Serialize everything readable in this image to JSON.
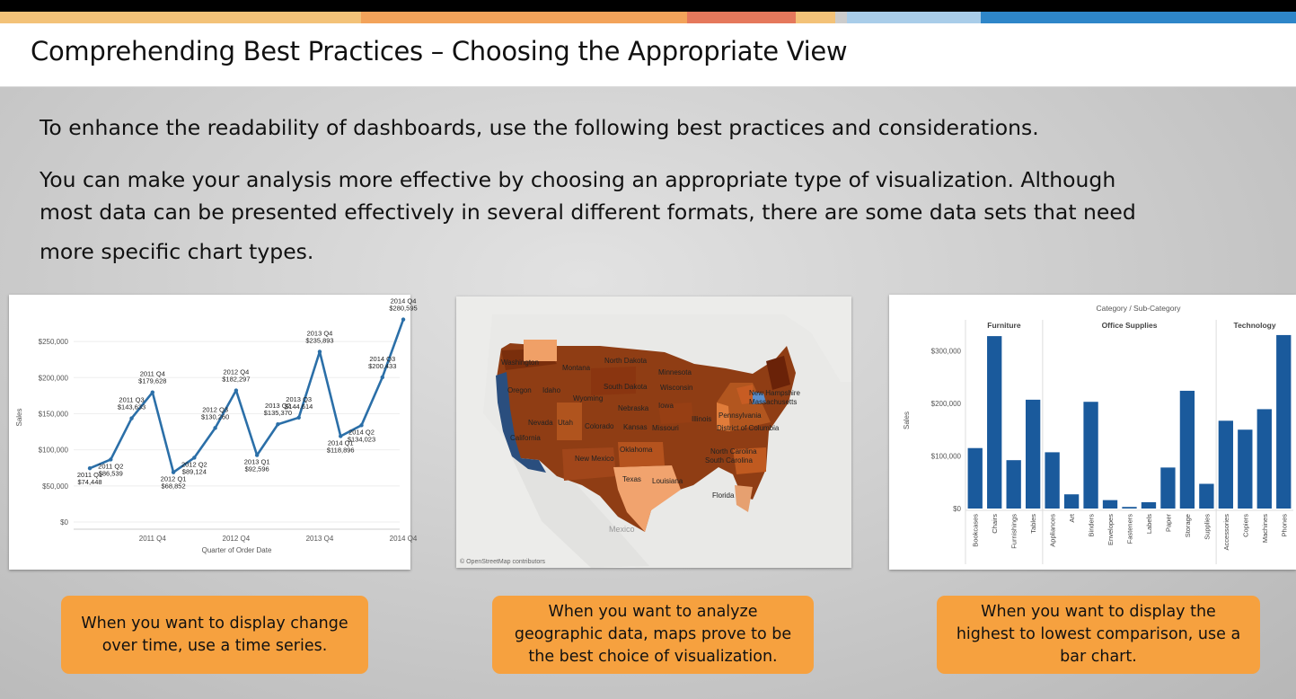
{
  "header": {
    "title": "Comprehending Best Practices – Choosing the Appropriate View",
    "accent_stripes": [
      "#f3c278",
      "#f3a35a",
      "#f0a05a",
      "#e5785c",
      "#f3c278",
      "#a9cde9",
      "#2e86c9"
    ]
  },
  "body": {
    "intro": "To enhance the readability of dashboards, use the following best practices and considerations.",
    "detail_lines": [
      "You can make your analysis more effective by choosing an appropriate type of visualization. Although",
      "most data can be presented effectively in several different formats, there are some data sets that need",
      "more specific chart types."
    ]
  },
  "captions": [
    {
      "line1": "When you want to display change",
      "line2": "over time, use a time series."
    },
    {
      "line1": "When you want to analyze",
      "line2": "geographic data, maps prove to be",
      "line3": "the best choice of visualization."
    },
    {
      "line1": "When you want to display the",
      "line2": "highest to lowest comparison, use a",
      "line3": "bar chart."
    }
  ],
  "map": {
    "attribution": "© OpenStreetMap contributors",
    "country_label": "Mexico",
    "state_labels": [
      "Washington",
      "Montana",
      "North Dakota",
      "Minnesota",
      "Oregon",
      "Idaho",
      "South Dakota",
      "Wisconsin",
      "Wyoming",
      "Nebraska",
      "Iowa",
      "New Hampshire",
      "Massachusetts",
      "Nevada",
      "Utah",
      "Colorado",
      "Kansas",
      "Missouri",
      "Illinois",
      "Pennsylvania",
      "District of Columbia",
      "California",
      "Oklahoma",
      "North Carolina",
      "South Carolina",
      "New Mexico",
      "Texas",
      "Louisiana",
      "Florida"
    ]
  },
  "chart_data": [
    {
      "type": "line",
      "xlabel": "Quarter of Order Date",
      "ylabel": "Sales",
      "y_ticks": [
        "$0",
        "$50,000",
        "$100,000",
        "$150,000",
        "$200,000",
        "$250,000"
      ],
      "x_ticks": [
        "2011 Q4",
        "2012 Q4",
        "2013 Q4",
        "2014 Q4"
      ],
      "ylim": [
        0,
        290000
      ],
      "series": [
        {
          "values": [
            74448,
            86539,
            143633,
            179628,
            68852,
            89124,
            130260,
            182297,
            92596,
            135370,
            144614,
            235893,
            118896,
            134023,
            200433,
            280595
          ]
        }
      ],
      "point_labels": [
        {
          "i": 0,
          "lines": [
            "2011 Q1",
            "$74,448"
          ],
          "pos": "below"
        },
        {
          "i": 1,
          "lines": [
            "2011 Q2",
            "$86,539"
          ],
          "pos": "below"
        },
        {
          "i": 2,
          "lines": [
            "2011 Q3",
            "$143,633"
          ],
          "pos": "above"
        },
        {
          "i": 3,
          "lines": [
            "2011 Q4",
            "$179,628"
          ],
          "pos": "above"
        },
        {
          "i": 4,
          "lines": [
            "2012 Q1",
            "$68,852"
          ],
          "pos": "below"
        },
        {
          "i": 5,
          "lines": [
            "2012 Q2",
            "$89,124"
          ],
          "pos": "below"
        },
        {
          "i": 6,
          "lines": [
            "2012 Q3",
            "$130,260"
          ],
          "pos": "above"
        },
        {
          "i": 7,
          "lines": [
            "2012 Q4",
            "$182,297"
          ],
          "pos": "above"
        },
        {
          "i": 8,
          "lines": [
            "2013 Q1",
            "$92,596"
          ],
          "pos": "below"
        },
        {
          "i": 9,
          "lines": [
            "2013 Q2",
            "$135,370"
          ],
          "pos": "above"
        },
        {
          "i": 10,
          "lines": [
            "2013 Q3",
            "$144,614"
          ],
          "pos": "above"
        },
        {
          "i": 11,
          "lines": [
            "2013 Q4",
            "$235,893"
          ],
          "pos": "above"
        },
        {
          "i": 12,
          "lines": [
            "2014 Q1",
            "$118,896"
          ],
          "pos": "below"
        },
        {
          "i": 13,
          "lines": [
            "2014 Q2",
            "$134,023"
          ],
          "pos": "below"
        },
        {
          "i": 14,
          "lines": [
            "2014 Q3",
            "$200,433"
          ],
          "pos": "above"
        },
        {
          "i": 15,
          "lines": [
            "2014 Q4",
            "$280,595"
          ],
          "pos": "above"
        }
      ],
      "colors": {
        "line": "#2b6fa8"
      }
    },
    {
      "type": "bar",
      "title": "Category  /  Sub-Category",
      "ylabel": "Sales",
      "y_ticks": [
        "$0",
        "$100,000",
        "$200,000",
        "$300,000"
      ],
      "ylim": [
        0,
        335000
      ],
      "groups": [
        {
          "name": "Furniture",
          "categories": [
            "Bookcases",
            "Chairs",
            "Furnishings",
            "Tables"
          ],
          "values": [
            115000,
            328000,
            92000,
            207000
          ]
        },
        {
          "name": "Office Supplies",
          "categories": [
            "Appliances",
            "Art",
            "Binders",
            "Envelopes",
            "Fasteners",
            "Labels",
            "Paper",
            "Storage",
            "Supplies"
          ],
          "values": [
            107000,
            27000,
            203000,
            16000,
            3000,
            12000,
            78000,
            224000,
            47000
          ]
        },
        {
          "name": "Technology",
          "categories": [
            "Accessories",
            "Copiers",
            "Machines",
            "Phones"
          ],
          "values": [
            167000,
            150000,
            189000,
            330000
          ]
        }
      ],
      "colors": {
        "bar": "#1a5a9c"
      }
    }
  ]
}
